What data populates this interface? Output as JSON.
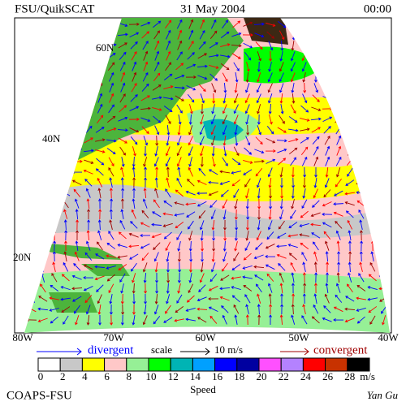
{
  "header": {
    "title": "FSU/QuikSCAT",
    "date": "31 May 2004",
    "time": "00:00"
  },
  "map": {
    "lat_labels": [
      "60N",
      "40N",
      "20N"
    ],
    "lon_labels": [
      "80W",
      "70W",
      "60W",
      "50W",
      "40W"
    ]
  },
  "legend": {
    "divergent": "divergent",
    "scale": "scale",
    "scale_value": "10 m/s",
    "convergent": "convergent"
  },
  "colorbar": {
    "ticks": [
      0,
      2,
      4,
      6,
      8,
      10,
      12,
      14,
      16,
      18,
      20,
      22,
      24,
      26,
      28
    ],
    "colors": [
      "#ffffff",
      "#c8c8c8",
      "#ffff00",
      "#ffc8c8",
      "#96f096",
      "#00ff00",
      "#00b4b4",
      "#00a0ff",
      "#0000ff",
      "#0000a0",
      "#ff50ff",
      "#b482ff",
      "#ff0000",
      "#c83200",
      "#000000"
    ],
    "unit": "m/s",
    "title": "Speed"
  },
  "footer": {
    "left": "COAPS-FSU",
    "right": "Yan Gu"
  }
}
